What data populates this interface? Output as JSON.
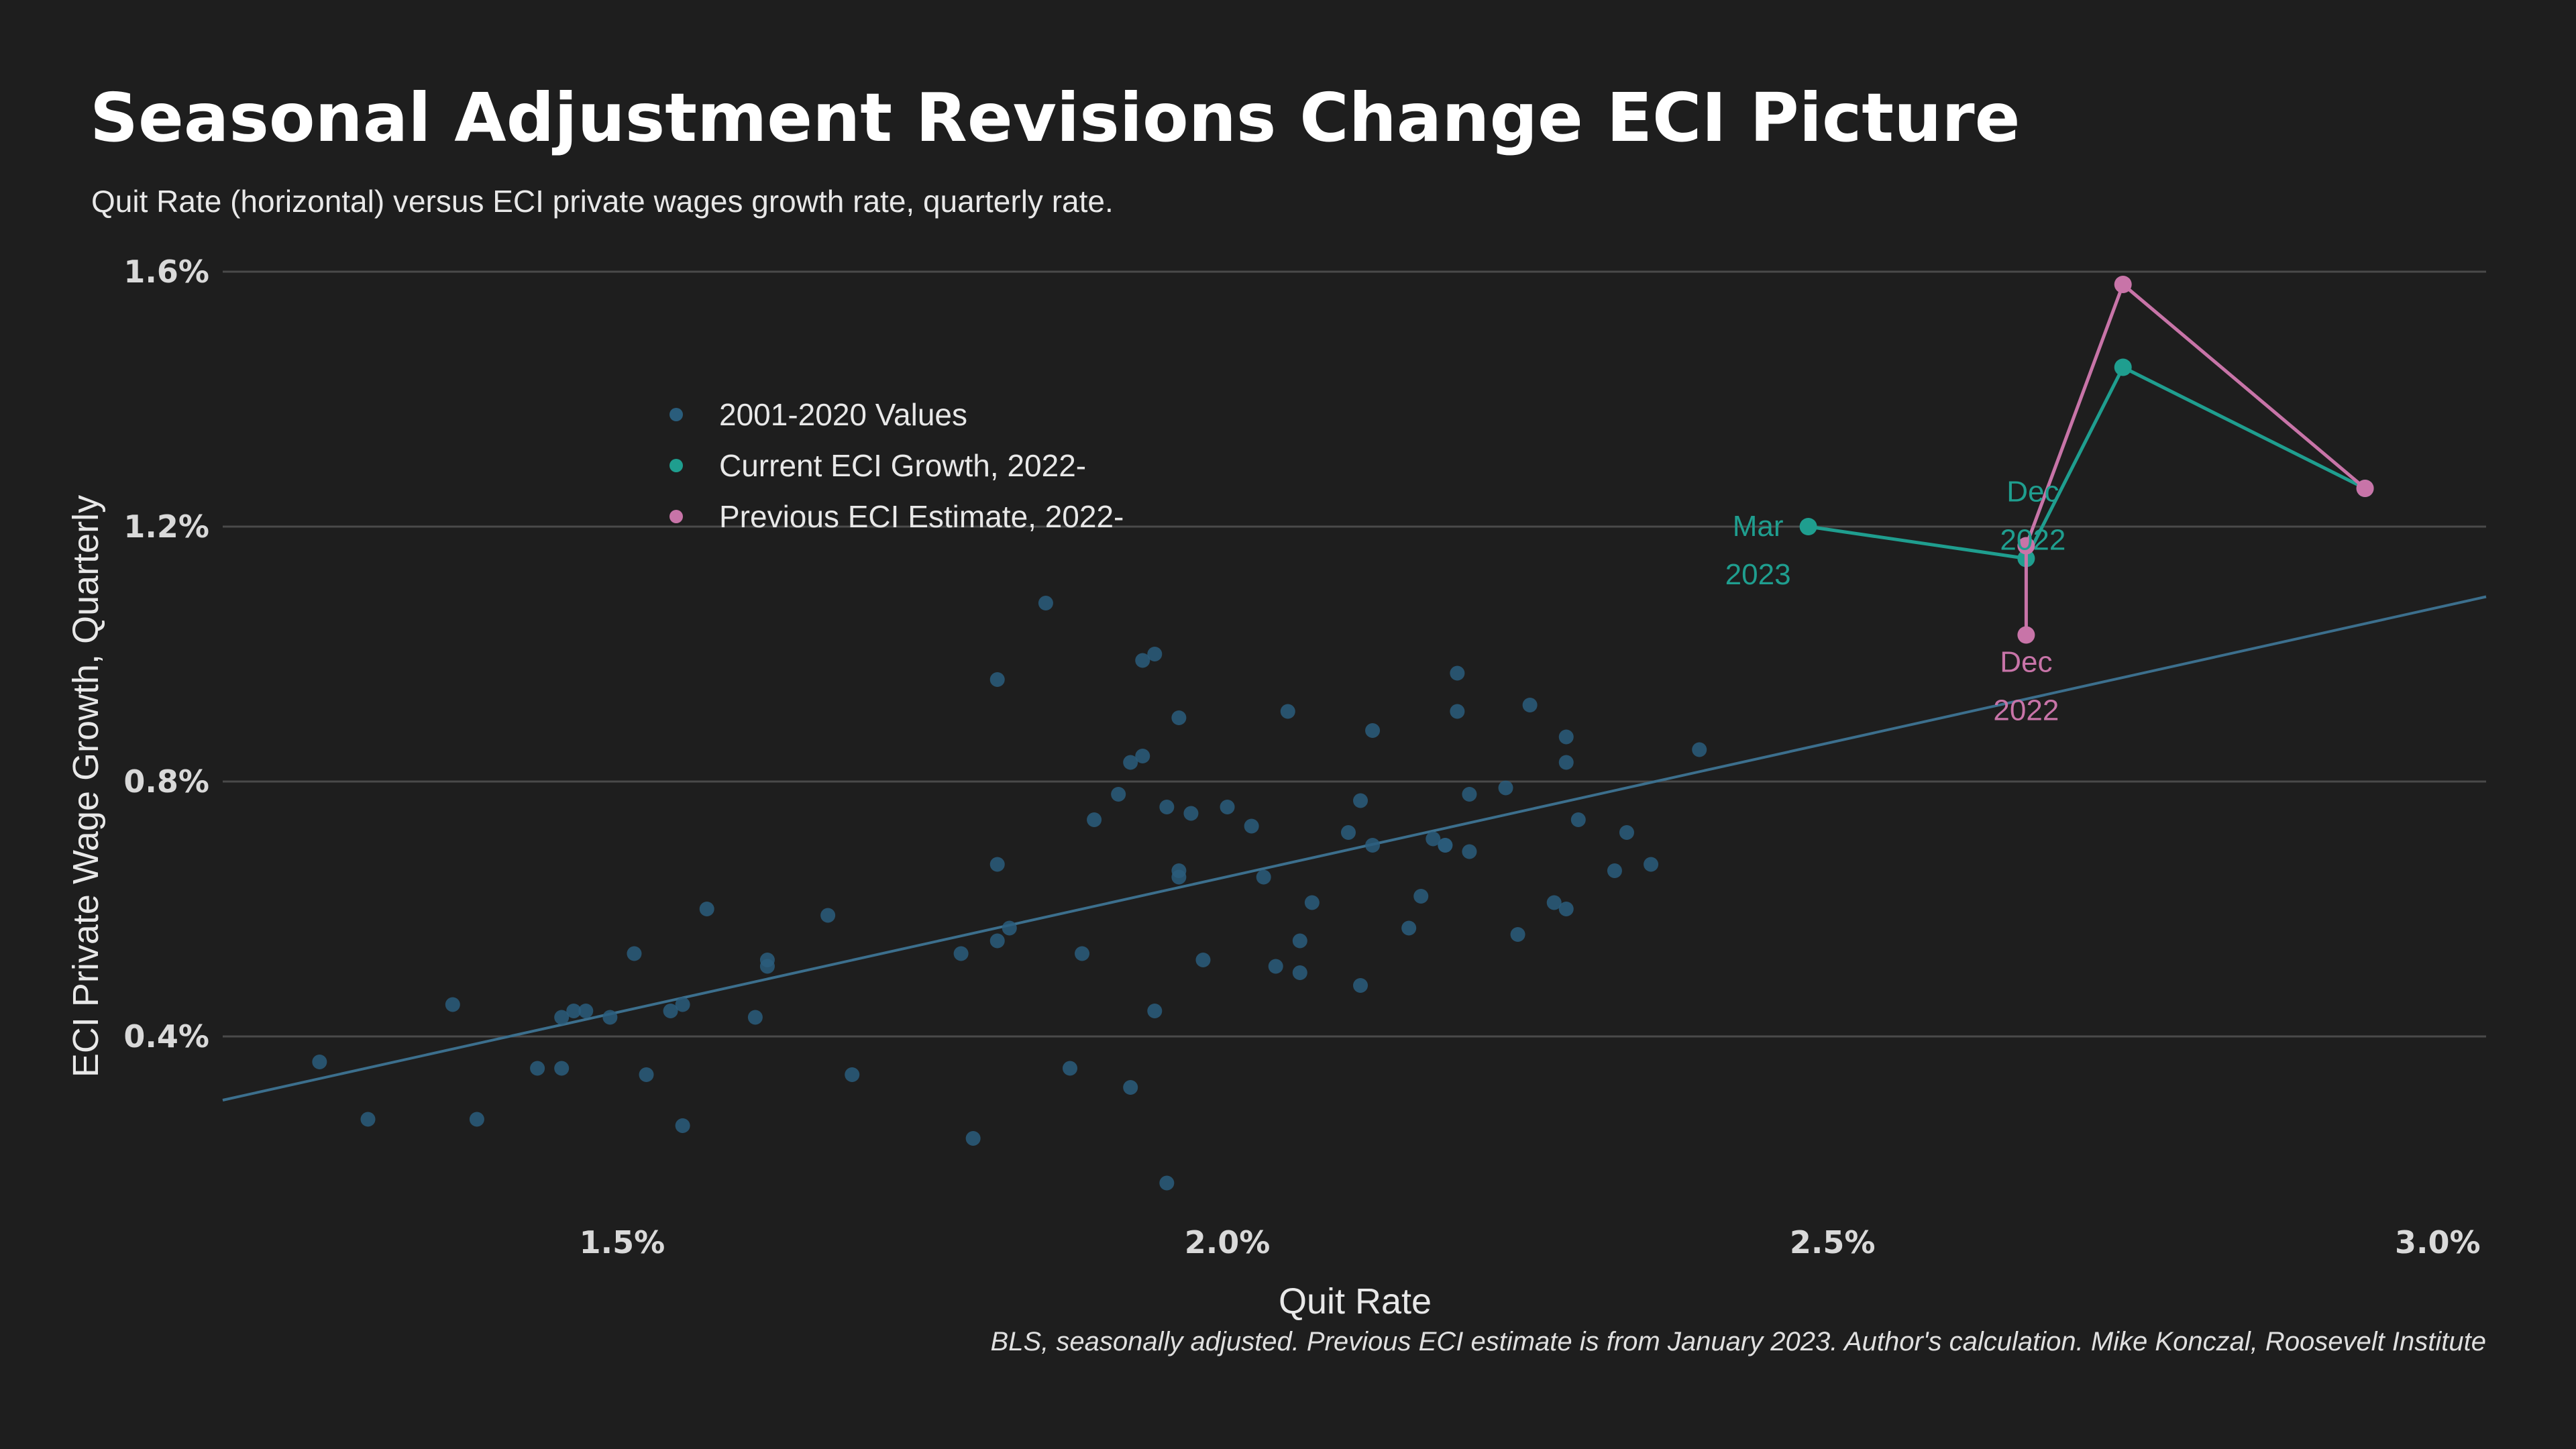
{
  "title": "Seasonal Adjustment Revisions Change ECI Picture",
  "subtitle": "Quit Rate (horizontal) versus ECI private wages growth rate, quarterly rate.",
  "caption": "BLS, seasonally adjusted. Previous ECI estimate is from January 2023. Author's calculation. Mike Konczal, Roosevelt Institute",
  "colors": {
    "background": "#1e1e1e",
    "grid": "#4a4a4a",
    "historical": "#2a5d7c",
    "trend": "#3c6f8d",
    "current": "#1f9e8f",
    "previous": "#c874a8"
  },
  "chart_data": {
    "type": "scatter",
    "xlabel": "Quit Rate",
    "ylabel": "ECI Private Wage Growth, Quarterly",
    "xlim": [
      1.17,
      3.04
    ],
    "ylim": [
      0.1,
      1.7
    ],
    "x_ticks": [
      1.5,
      2.0,
      2.5,
      3.0
    ],
    "x_tick_labels": [
      "1.5%",
      "2.0%",
      "2.5%",
      "3.0%"
    ],
    "y_ticks": [
      0.4,
      0.8,
      1.2,
      1.6
    ],
    "y_tick_labels": [
      "0.4%",
      "0.8%",
      "1.2%",
      "1.6%"
    ],
    "grid": "horizontal",
    "legend_position": "top-left",
    "series": [
      {
        "name": "2001-2020 Values",
        "mode": "markers",
        "color": "#2a5d7c",
        "points": [
          [
            1.25,
            0.36
          ],
          [
            1.29,
            0.27
          ],
          [
            1.36,
            0.45
          ],
          [
            1.38,
            0.27
          ],
          [
            1.43,
            0.35
          ],
          [
            1.45,
            0.43
          ],
          [
            1.45,
            0.35
          ],
          [
            1.46,
            0.44
          ],
          [
            1.47,
            0.44
          ],
          [
            1.49,
            0.43
          ],
          [
            1.51,
            0.53
          ],
          [
            1.52,
            0.34
          ],
          [
            1.54,
            0.44
          ],
          [
            1.55,
            0.45
          ],
          [
            1.55,
            0.26
          ],
          [
            1.57,
            0.6
          ],
          [
            1.61,
            0.43
          ],
          [
            1.62,
            0.51
          ],
          [
            1.62,
            0.52
          ],
          [
            1.67,
            0.59
          ],
          [
            1.69,
            0.34
          ],
          [
            1.78,
            0.53
          ],
          [
            1.79,
            0.24
          ],
          [
            1.81,
            0.55
          ],
          [
            1.81,
            0.67
          ],
          [
            1.81,
            0.96
          ],
          [
            1.82,
            0.57
          ],
          [
            1.85,
            1.08
          ],
          [
            1.87,
            0.35
          ],
          [
            1.88,
            0.53
          ],
          [
            1.89,
            0.74
          ],
          [
            1.91,
            0.78
          ],
          [
            1.92,
            0.83
          ],
          [
            1.92,
            0.32
          ],
          [
            1.93,
            0.84
          ],
          [
            1.93,
            0.99
          ],
          [
            1.94,
            0.44
          ],
          [
            1.94,
            1.0
          ],
          [
            1.95,
            0.17
          ],
          [
            1.95,
            0.76
          ],
          [
            1.96,
            0.65
          ],
          [
            1.96,
            0.66
          ],
          [
            1.96,
            0.9
          ],
          [
            1.97,
            0.75
          ],
          [
            1.98,
            0.52
          ],
          [
            2.0,
            0.76
          ],
          [
            2.02,
            0.73
          ],
          [
            2.03,
            0.65
          ],
          [
            2.04,
            0.51
          ],
          [
            2.05,
            0.91
          ],
          [
            2.06,
            0.55
          ],
          [
            2.06,
            0.5
          ],
          [
            2.07,
            0.61
          ],
          [
            2.1,
            0.72
          ],
          [
            2.11,
            0.48
          ],
          [
            2.11,
            0.77
          ],
          [
            2.12,
            0.7
          ],
          [
            2.12,
            0.88
          ],
          [
            2.15,
            0.57
          ],
          [
            2.16,
            0.62
          ],
          [
            2.17,
            0.71
          ],
          [
            2.18,
            0.7
          ],
          [
            2.18,
            0.7
          ],
          [
            2.19,
            0.97
          ],
          [
            2.19,
            0.91
          ],
          [
            2.2,
            0.69
          ],
          [
            2.2,
            0.78
          ],
          [
            2.23,
            0.79
          ],
          [
            2.24,
            0.56
          ],
          [
            2.25,
            0.92
          ],
          [
            2.27,
            0.61
          ],
          [
            2.28,
            0.87
          ],
          [
            2.28,
            0.83
          ],
          [
            2.28,
            0.6
          ],
          [
            2.29,
            0.74
          ],
          [
            2.32,
            0.66
          ],
          [
            2.33,
            0.72
          ],
          [
            2.35,
            0.67
          ],
          [
            2.39,
            0.85
          ]
        ]
      },
      {
        "name": "Current ECI Growth, 2022-",
        "mode": "lines+markers",
        "color": "#1f9e8f",
        "points": [
          [
            2.94,
            1.26
          ],
          [
            2.74,
            1.45
          ],
          [
            2.66,
            1.15
          ],
          [
            2.48,
            1.2
          ]
        ]
      },
      {
        "name": "Previous ECI Estimate, 2022-",
        "mode": "lines+markers",
        "color": "#c874a8",
        "points": [
          [
            2.94,
            1.26
          ],
          [
            2.74,
            1.58
          ],
          [
            2.66,
            1.17
          ],
          [
            2.66,
            1.03
          ]
        ]
      }
    ],
    "trendline": {
      "x": [
        1.17,
        3.04
      ],
      "y": [
        0.3,
        1.09
      ]
    },
    "annotations": [
      {
        "series": "Current ECI Growth, 2022-",
        "lines": [
          "Mar",
          "2023"
        ],
        "x": 2.48,
        "y": 1.2,
        "position": "left"
      },
      {
        "series": "Current ECI Growth, 2022-",
        "lines": [
          "Dec",
          "2022"
        ],
        "x": 2.66,
        "y": 1.15,
        "position": "above"
      },
      {
        "series": "Previous ECI Estimate, 2022-",
        "lines": [
          "Dec",
          "2022"
        ],
        "x": 2.66,
        "y": 1.03,
        "position": "below"
      }
    ]
  }
}
